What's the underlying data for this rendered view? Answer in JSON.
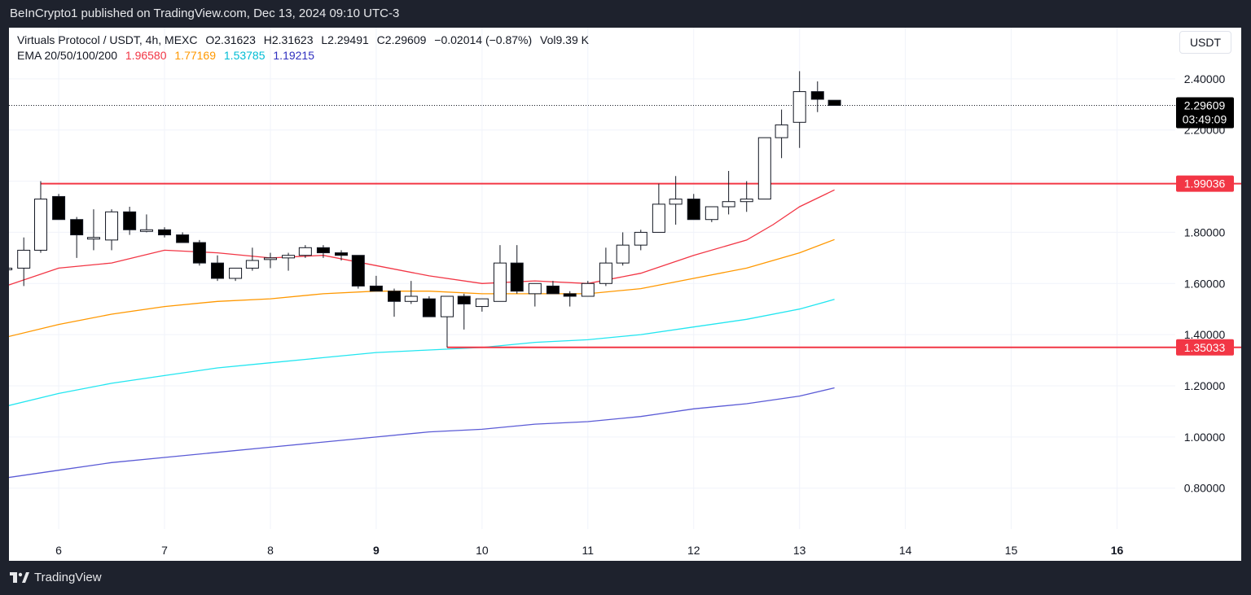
{
  "header": {
    "published_text": "BeInCrypto1 published on TradingView.com, Dec 13, 2024 09:10 UTC-3"
  },
  "footer": {
    "brand": "TradingView"
  },
  "legend": {
    "symbol_line": "Virtuals Protocol / USDT, 4h, MEXC",
    "open": "O2.31623",
    "high": "H2.31623",
    "low": "L2.29491",
    "close": "C2.29609",
    "change": "−0.02014 (−0.87%)",
    "volume": "Vol9.39 K",
    "ema_label": "EMA 20/50/100/200",
    "ema20": "1.96580",
    "ema50": "1.77169",
    "ema100": "1.53785",
    "ema200": "1.19215"
  },
  "currency_button": "USDT",
  "colors": {
    "up_fill": "#ffffff",
    "down_fill": "#000000",
    "ema20": "#f23645",
    "ema50": "#ff9800",
    "ema100": "#22e6f0",
    "ema200": "#5b5bd6",
    "level_line": "#f23645",
    "price_label_bg": "#000000"
  },
  "chart_data": {
    "type": "candlestick",
    "title": "Virtuals Protocol / USDT, 4h, MEXC",
    "ylim": [
      0.64,
      2.6
    ],
    "xlim": [
      5.53,
      16.55
    ],
    "y_ticks": [
      "2.40000",
      "2.20000",
      "1.80000",
      "1.60000",
      "1.40000",
      "1.20000",
      "1.00000",
      "0.80000"
    ],
    "y_tick_values": [
      2.4,
      2.2,
      1.8,
      1.6,
      1.4,
      1.2,
      1.0,
      0.8
    ],
    "x_ticks": [
      {
        "label": "6",
        "value": 6,
        "bold": false
      },
      {
        "label": "7",
        "value": 7,
        "bold": false
      },
      {
        "label": "8",
        "value": 8,
        "bold": false
      },
      {
        "label": "9",
        "value": 9,
        "bold": true
      },
      {
        "label": "10",
        "value": 10,
        "bold": false
      },
      {
        "label": "11",
        "value": 11,
        "bold": false
      },
      {
        "label": "12",
        "value": 12,
        "bold": false
      },
      {
        "label": "13",
        "value": 13,
        "bold": false
      },
      {
        "label": "14",
        "value": 14,
        "bold": false
      },
      {
        "label": "15",
        "value": 15,
        "bold": false
      },
      {
        "label": "16",
        "value": 16,
        "bold": true
      }
    ],
    "candles": [
      {
        "t": 5.5,
        "o": 1.66,
        "h": 1.68,
        "l": 1.64,
        "c": 1.66
      },
      {
        "t": 5.67,
        "o": 1.66,
        "h": 1.78,
        "l": 1.59,
        "c": 1.73
      },
      {
        "t": 5.83,
        "o": 1.73,
        "h": 2.0,
        "l": 1.72,
        "c": 1.93
      },
      {
        "t": 6.0,
        "o": 1.94,
        "h": 1.95,
        "l": 1.85,
        "c": 1.85
      },
      {
        "t": 6.17,
        "o": 1.85,
        "h": 1.86,
        "l": 1.7,
        "c": 1.79
      },
      {
        "t": 6.33,
        "o": 1.78,
        "h": 1.89,
        "l": 1.73,
        "c": 1.78
      },
      {
        "t": 6.5,
        "o": 1.77,
        "h": 1.89,
        "l": 1.73,
        "c": 1.88
      },
      {
        "t": 6.67,
        "o": 1.88,
        "h": 1.9,
        "l": 1.79,
        "c": 1.81
      },
      {
        "t": 6.83,
        "o": 1.81,
        "h": 1.87,
        "l": 1.8,
        "c": 1.81
      },
      {
        "t": 7.0,
        "o": 1.81,
        "h": 1.82,
        "l": 1.78,
        "c": 1.79
      },
      {
        "t": 7.17,
        "o": 1.79,
        "h": 1.8,
        "l": 1.76,
        "c": 1.76
      },
      {
        "t": 7.33,
        "o": 1.76,
        "h": 1.77,
        "l": 1.67,
        "c": 1.68
      },
      {
        "t": 7.5,
        "o": 1.68,
        "h": 1.71,
        "l": 1.61,
        "c": 1.62
      },
      {
        "t": 7.67,
        "o": 1.62,
        "h": 1.66,
        "l": 1.61,
        "c": 1.66
      },
      {
        "t": 7.83,
        "o": 1.66,
        "h": 1.74,
        "l": 1.65,
        "c": 1.69
      },
      {
        "t": 8.0,
        "o": 1.7,
        "h": 1.72,
        "l": 1.66,
        "c": 1.7
      },
      {
        "t": 8.17,
        "o": 1.7,
        "h": 1.72,
        "l": 1.65,
        "c": 1.71
      },
      {
        "t": 8.33,
        "o": 1.71,
        "h": 1.75,
        "l": 1.7,
        "c": 1.74
      },
      {
        "t": 8.5,
        "o": 1.74,
        "h": 1.75,
        "l": 1.7,
        "c": 1.72
      },
      {
        "t": 8.67,
        "o": 1.72,
        "h": 1.73,
        "l": 1.69,
        "c": 1.71
      },
      {
        "t": 8.83,
        "o": 1.71,
        "h": 1.71,
        "l": 1.58,
        "c": 1.59
      },
      {
        "t": 9.0,
        "o": 1.59,
        "h": 1.63,
        "l": 1.57,
        "c": 1.57
      },
      {
        "t": 9.17,
        "o": 1.57,
        "h": 1.58,
        "l": 1.47,
        "c": 1.53
      },
      {
        "t": 9.33,
        "o": 1.53,
        "h": 1.61,
        "l": 1.52,
        "c": 1.55
      },
      {
        "t": 9.5,
        "o": 1.54,
        "h": 1.55,
        "l": 1.47,
        "c": 1.47
      },
      {
        "t": 9.67,
        "o": 1.47,
        "h": 1.55,
        "l": 1.35,
        "c": 1.55
      },
      {
        "t": 9.83,
        "o": 1.55,
        "h": 1.56,
        "l": 1.42,
        "c": 1.52
      },
      {
        "t": 10.0,
        "o": 1.51,
        "h": 1.54,
        "l": 1.49,
        "c": 1.54
      },
      {
        "t": 10.17,
        "o": 1.53,
        "h": 1.75,
        "l": 1.53,
        "c": 1.68
      },
      {
        "t": 10.33,
        "o": 1.68,
        "h": 1.75,
        "l": 1.56,
        "c": 1.57
      },
      {
        "t": 10.5,
        "o": 1.56,
        "h": 1.6,
        "l": 1.51,
        "c": 1.6
      },
      {
        "t": 10.67,
        "o": 1.59,
        "h": 1.61,
        "l": 1.56,
        "c": 1.56
      },
      {
        "t": 10.83,
        "o": 1.56,
        "h": 1.57,
        "l": 1.51,
        "c": 1.55
      },
      {
        "t": 11.0,
        "o": 1.55,
        "h": 1.61,
        "l": 1.55,
        "c": 1.6
      },
      {
        "t": 11.17,
        "o": 1.6,
        "h": 1.74,
        "l": 1.59,
        "c": 1.68
      },
      {
        "t": 11.33,
        "o": 1.68,
        "h": 1.8,
        "l": 1.67,
        "c": 1.75
      },
      {
        "t": 11.5,
        "o": 1.75,
        "h": 1.81,
        "l": 1.73,
        "c": 1.8
      },
      {
        "t": 11.67,
        "o": 1.8,
        "h": 1.99,
        "l": 1.8,
        "c": 1.91
      },
      {
        "t": 11.83,
        "o": 1.91,
        "h": 2.02,
        "l": 1.83,
        "c": 1.93
      },
      {
        "t": 12.0,
        "o": 1.93,
        "h": 1.95,
        "l": 1.85,
        "c": 1.85
      },
      {
        "t": 12.17,
        "o": 1.85,
        "h": 1.9,
        "l": 1.84,
        "c": 1.9
      },
      {
        "t": 12.33,
        "o": 1.9,
        "h": 2.04,
        "l": 1.87,
        "c": 1.92
      },
      {
        "t": 12.5,
        "o": 1.92,
        "h": 2.0,
        "l": 1.88,
        "c": 1.93
      },
      {
        "t": 12.67,
        "o": 1.93,
        "h": 2.17,
        "l": 1.93,
        "c": 2.17
      },
      {
        "t": 12.83,
        "o": 2.17,
        "h": 2.28,
        "l": 2.09,
        "c": 2.22
      },
      {
        "t": 13.0,
        "o": 2.23,
        "h": 2.43,
        "l": 2.13,
        "c": 2.35
      },
      {
        "t": 13.17,
        "o": 2.35,
        "h": 2.39,
        "l": 2.27,
        "c": 2.32
      },
      {
        "t": 13.33,
        "o": 2.31623,
        "h": 2.31623,
        "l": 2.29491,
        "c": 2.29609
      }
    ],
    "ema": [
      {
        "name": "EMA 20",
        "key": "ema20",
        "points": [
          [
            5.5,
            1.59
          ],
          [
            6.0,
            1.66
          ],
          [
            6.5,
            1.68
          ],
          [
            7.0,
            1.73
          ],
          [
            7.5,
            1.72
          ],
          [
            8.0,
            1.7
          ],
          [
            8.5,
            1.71
          ],
          [
            9.0,
            1.67
          ],
          [
            9.5,
            1.63
          ],
          [
            10.0,
            1.6
          ],
          [
            10.5,
            1.61
          ],
          [
            11.0,
            1.6
          ],
          [
            11.5,
            1.64
          ],
          [
            12.0,
            1.71
          ],
          [
            12.5,
            1.77
          ],
          [
            12.75,
            1.83
          ],
          [
            13.0,
            1.9
          ],
          [
            13.33,
            1.9658
          ]
        ]
      },
      {
        "name": "EMA 50",
        "key": "ema50",
        "points": [
          [
            5.5,
            1.39
          ],
          [
            6.0,
            1.44
          ],
          [
            6.5,
            1.48
          ],
          [
            7.0,
            1.51
          ],
          [
            7.5,
            1.53
          ],
          [
            8.0,
            1.54
          ],
          [
            8.5,
            1.56
          ],
          [
            9.0,
            1.57
          ],
          [
            9.5,
            1.57
          ],
          [
            10.0,
            1.56
          ],
          [
            10.5,
            1.56
          ],
          [
            11.0,
            1.56
          ],
          [
            11.5,
            1.58
          ],
          [
            12.0,
            1.62
          ],
          [
            12.5,
            1.66
          ],
          [
            13.0,
            1.72
          ],
          [
            13.33,
            1.77169
          ]
        ]
      },
      {
        "name": "EMA 100",
        "key": "ema100",
        "points": [
          [
            5.5,
            1.12
          ],
          [
            6.0,
            1.17
          ],
          [
            6.5,
            1.21
          ],
          [
            7.0,
            1.24
          ],
          [
            7.5,
            1.27
          ],
          [
            8.0,
            1.29
          ],
          [
            8.5,
            1.31
          ],
          [
            9.0,
            1.33
          ],
          [
            9.5,
            1.34
          ],
          [
            10.0,
            1.35
          ],
          [
            10.5,
            1.37
          ],
          [
            11.0,
            1.38
          ],
          [
            11.5,
            1.4
          ],
          [
            12.0,
            1.43
          ],
          [
            12.5,
            1.46
          ],
          [
            13.0,
            1.5
          ],
          [
            13.33,
            1.53785
          ]
        ]
      },
      {
        "name": "EMA 200",
        "key": "ema200",
        "points": [
          [
            5.5,
            0.84
          ],
          [
            6.0,
            0.87
          ],
          [
            6.5,
            0.9
          ],
          [
            7.0,
            0.92
          ],
          [
            7.5,
            0.94
          ],
          [
            8.0,
            0.96
          ],
          [
            8.5,
            0.98
          ],
          [
            9.0,
            1.0
          ],
          [
            9.5,
            1.02
          ],
          [
            10.0,
            1.03
          ],
          [
            10.5,
            1.05
          ],
          [
            11.0,
            1.06
          ],
          [
            11.5,
            1.08
          ],
          [
            12.0,
            1.11
          ],
          [
            12.5,
            1.13
          ],
          [
            13.0,
            1.16
          ],
          [
            13.33,
            1.19215
          ]
        ]
      }
    ],
    "levels": [
      {
        "name": "resistance",
        "value": 1.99036,
        "label": "1.99036",
        "x_start": 5.83
      },
      {
        "name": "support",
        "value": 1.35033,
        "label": "1.35033",
        "x_start": 9.67
      }
    ],
    "current_price": {
      "value": 2.29609,
      "label": "2.29609",
      "countdown": "03:49:09"
    }
  }
}
